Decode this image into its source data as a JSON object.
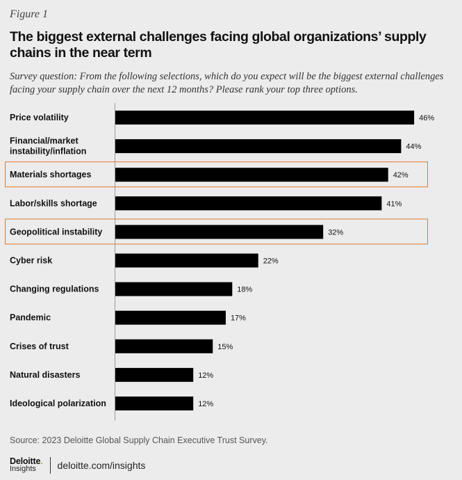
{
  "figure_label": "Figure 1",
  "title": "The biggest external challenges facing global organizations’ supply chains in the near term",
  "subtitle": "Survey question: From the following selections, which do you expect will be the biggest external challenges facing your supply chain over the next 12 months? Please rank your top three options.",
  "chart_data": {
    "type": "bar",
    "orientation": "horizontal",
    "title": "The biggest external challenges facing global organizations’ supply chains in the near term",
    "xlabel": "",
    "ylabel": "",
    "xlim": [
      0,
      50
    ],
    "grid": false,
    "categories": [
      [
        "Price volatility"
      ],
      [
        "Financial/market",
        "instability/inflation"
      ],
      [
        "Materials shortages"
      ],
      [
        "Labor/skills shortage"
      ],
      [
        "Geopolitical instability"
      ],
      [
        "Cyber risk"
      ],
      [
        "Changing regulations"
      ],
      [
        "Pandemic"
      ],
      [
        "Crises of trust"
      ],
      [
        "Natural disasters"
      ],
      [
        "Ideological polarization"
      ]
    ],
    "values": [
      46,
      44,
      42,
      41,
      32,
      22,
      18,
      17,
      15,
      12,
      12
    ],
    "value_labels": [
      "46%",
      "44%",
      "42%",
      "41%",
      "32%",
      "22%",
      "18%",
      "17%",
      "15%",
      "12%",
      "12%"
    ],
    "highlighted": [
      "Materials shortages",
      "Geopolitical instability"
    ],
    "bar_color": "#000000",
    "highlight_color": "#e07a2f",
    "axis_color": "#999999"
  },
  "source": "Source: 2023 Deloitte Global Supply Chain Executive Trust Survey.",
  "footer": {
    "logo_main": "Deloitte",
    "logo_dot": ".",
    "logo_sub": "Insights",
    "link": "deloitte.com/insights"
  }
}
